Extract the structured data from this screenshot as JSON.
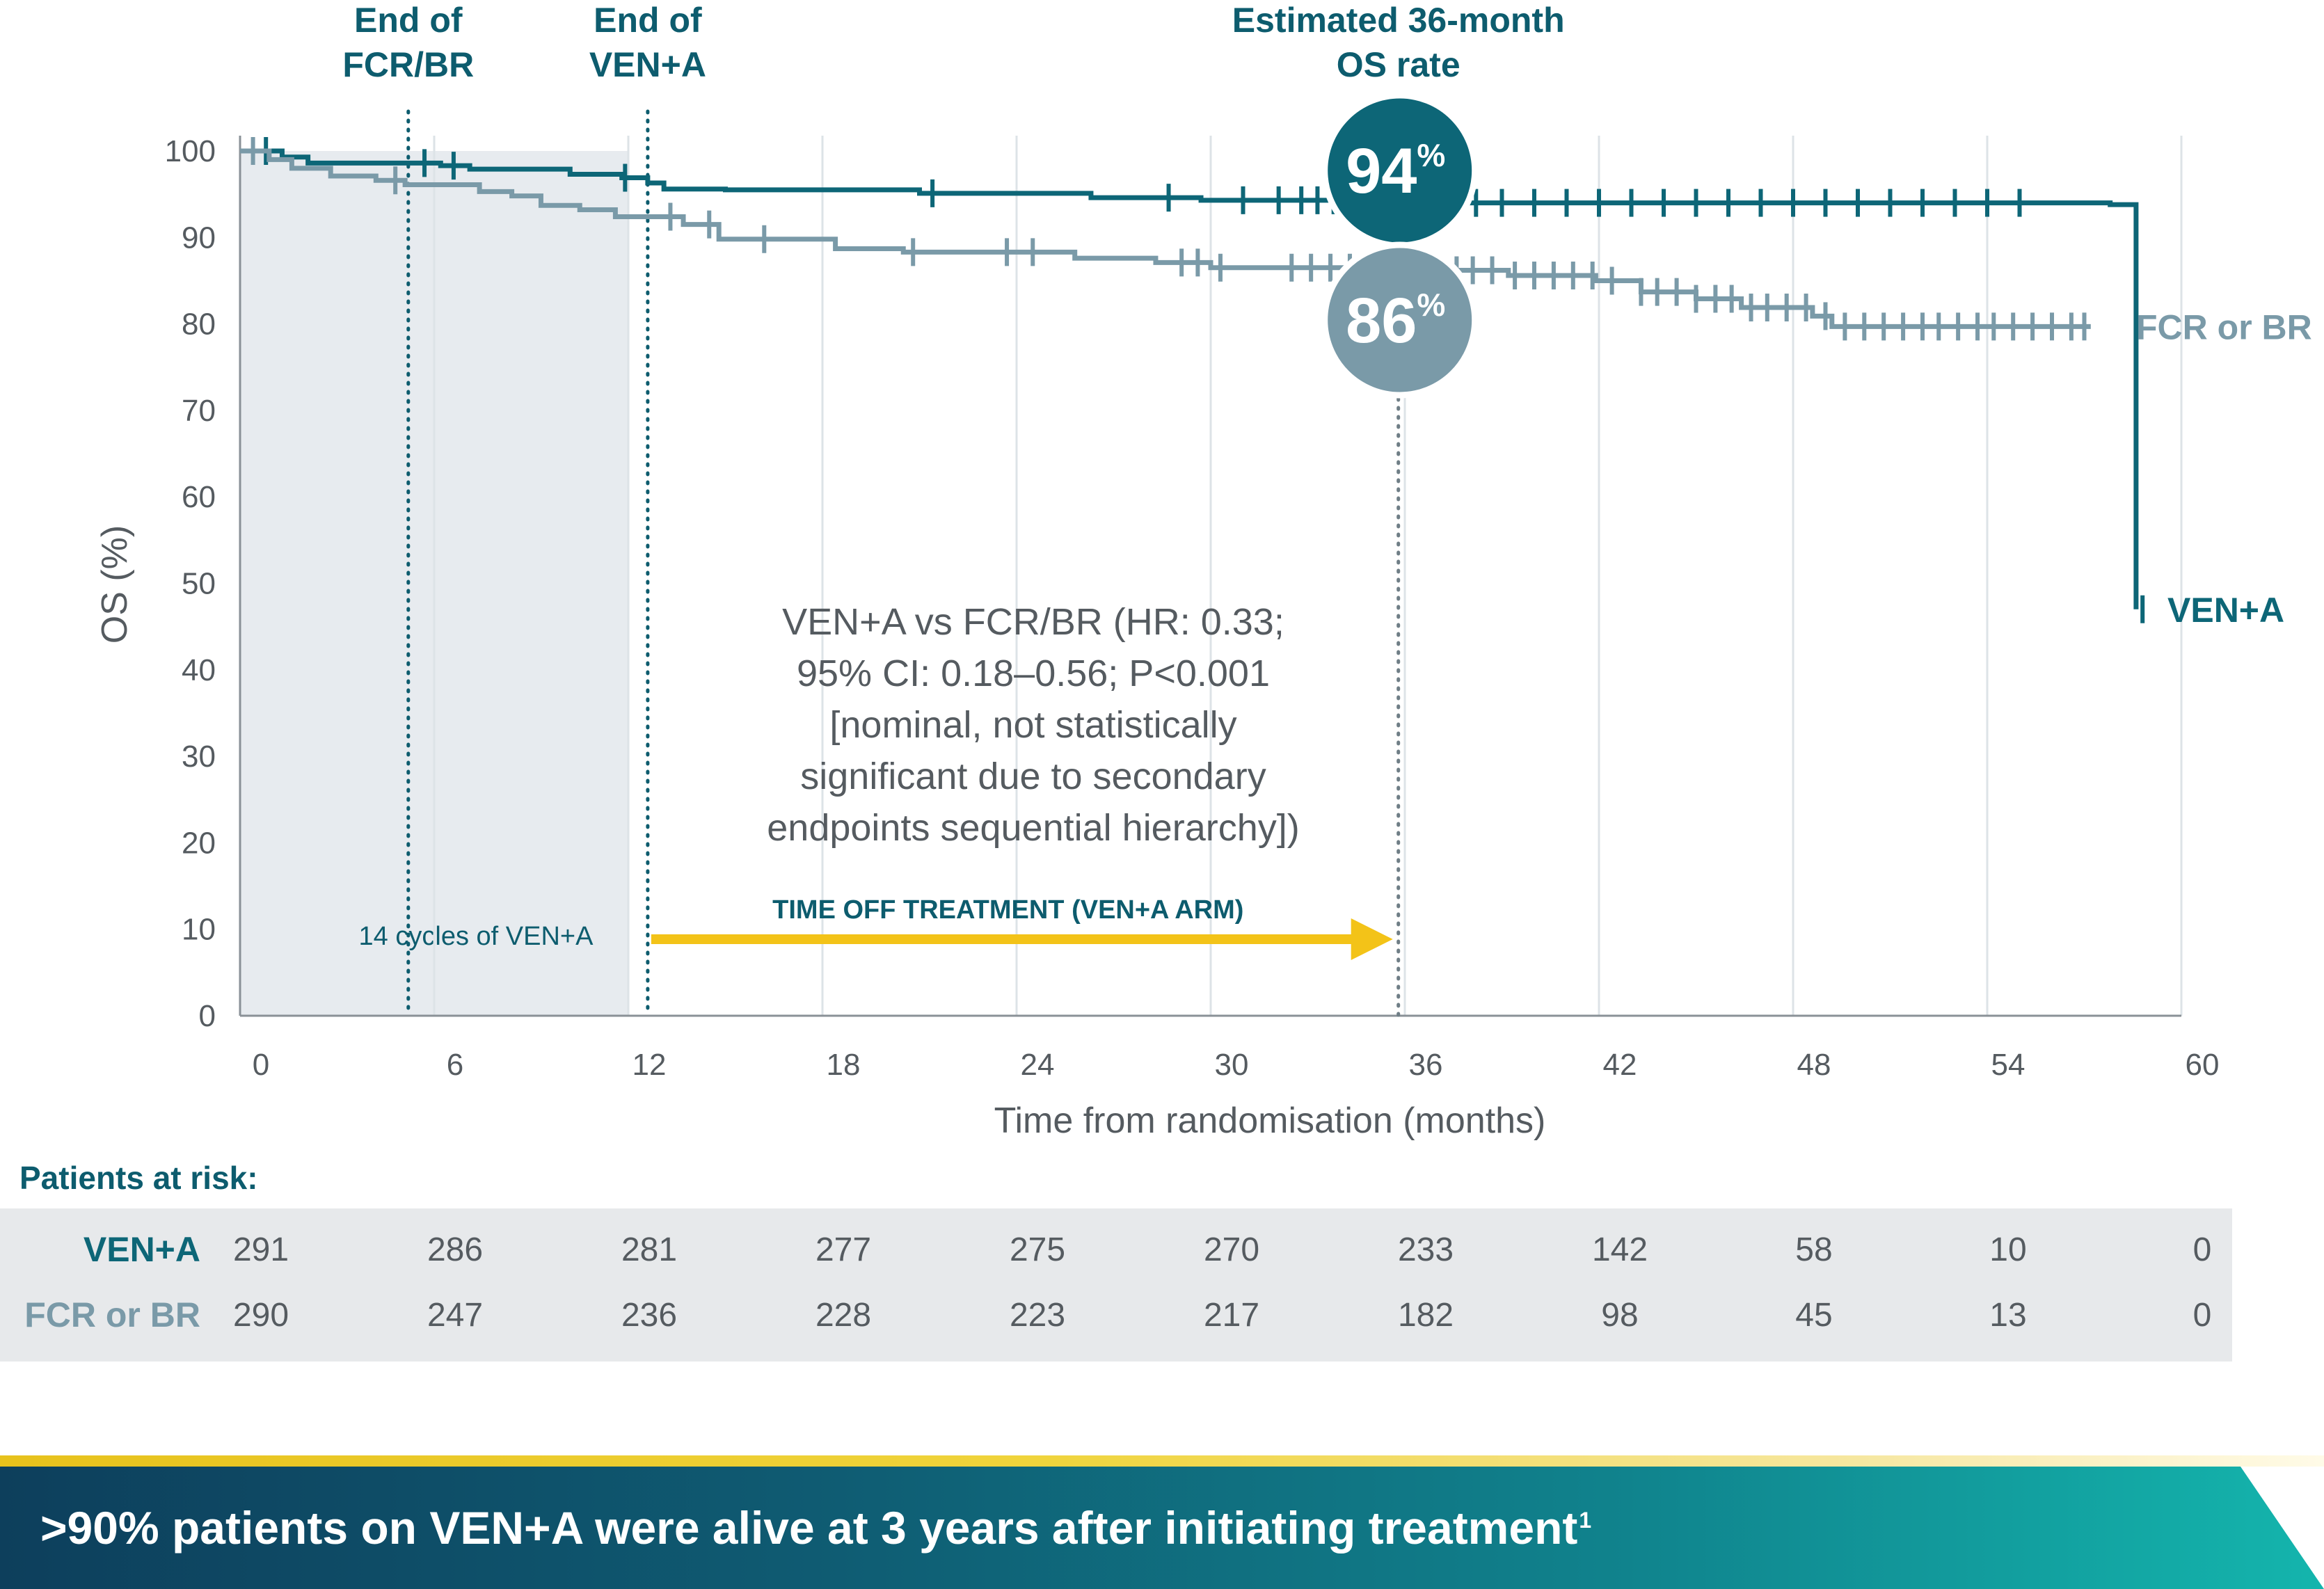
{
  "chart_data": {
    "type": "line",
    "ylabel": "OS (%)",
    "xlabel": "Time from randomisation (months)",
    "xlim": [
      0,
      60
    ],
    "ylim": [
      0,
      100
    ],
    "x_ticks": [
      0,
      6,
      12,
      18,
      24,
      30,
      36,
      42,
      48,
      54,
      60
    ],
    "y_ticks": [
      0,
      10,
      20,
      30,
      40,
      50,
      60,
      70,
      80,
      90,
      100
    ],
    "grid": "vertical",
    "series": [
      {
        "name": "VEN+A",
        "color": "#0d6677",
        "values": [
          [
            0,
            100
          ],
          [
            1.3,
            99.3
          ],
          [
            2.1,
            98.6
          ],
          [
            6.2,
            98.3
          ],
          [
            7.1,
            97.9
          ],
          [
            10.2,
            97.3
          ],
          [
            11.8,
            96.9
          ],
          [
            12.6,
            96.3
          ],
          [
            13.1,
            95.6
          ],
          [
            15,
            95.5
          ],
          [
            21,
            95.1
          ],
          [
            26.3,
            94.6
          ],
          [
            29.7,
            94.3
          ],
          [
            35,
            94
          ],
          [
            57.8,
            93.8
          ],
          [
            58.6,
            47
          ]
        ],
        "censor_marks_x": [
          0.8,
          5.7,
          6.6,
          11.9,
          21.4,
          28.7,
          31,
          32.1,
          32.8,
          33.3,
          33.8,
          34.3,
          34.8,
          35.4,
          36.1,
          36.7,
          37.4,
          38.2,
          39,
          40,
          41,
          42,
          43,
          44,
          45,
          46,
          47,
          48,
          49,
          50,
          51,
          52,
          53,
          54,
          55,
          58.8
        ],
        "end_label": "VEN+A",
        "estimated_36_month_os": "94"
      },
      {
        "name": "FCR or BR",
        "color": "#7a9aa8",
        "values": [
          [
            0,
            100
          ],
          [
            0.9,
            99
          ],
          [
            1.6,
            98
          ],
          [
            2.8,
            97.1
          ],
          [
            4.2,
            96.6
          ],
          [
            5.1,
            96.1
          ],
          [
            7.4,
            95.3
          ],
          [
            8.4,
            94.8
          ],
          [
            9.3,
            93.7
          ],
          [
            10.5,
            93.2
          ],
          [
            11.6,
            92.4
          ],
          [
            13.7,
            91.5
          ],
          [
            14.8,
            89.8
          ],
          [
            18.4,
            88.7
          ],
          [
            20.5,
            88.3
          ],
          [
            25.8,
            87.6
          ],
          [
            28.3,
            87.1
          ],
          [
            30,
            86.5
          ],
          [
            36,
            86.2
          ],
          [
            39.2,
            85.6
          ],
          [
            41.9,
            85
          ],
          [
            43.3,
            83.7
          ],
          [
            45,
            82.9
          ],
          [
            46.4,
            81.9
          ],
          [
            48.6,
            80.9
          ],
          [
            49.2,
            79.7
          ],
          [
            57.2,
            79.7
          ]
        ],
        "censor_marks_x": [
          0.4,
          4.8,
          13.3,
          14.5,
          16.2,
          20.8,
          23.7,
          24.5,
          29.1,
          29.6,
          30.3,
          32.5,
          33.1,
          33.7,
          34.3,
          34.9,
          35.5,
          36.4,
          37,
          37.6,
          38.1,
          38.7,
          39.4,
          40,
          40.6,
          41.2,
          41.8,
          42.4,
          43.3,
          43.8,
          44.4,
          45,
          45.6,
          46.1,
          46.7,
          47.2,
          47.8,
          48.4,
          49,
          49.6,
          50.2,
          50.8,
          51.4,
          52,
          52.5,
          53.1,
          53.7,
          54.2,
          54.8,
          55.4,
          56,
          56.6,
          57
        ],
        "end_label": "FCR or BR",
        "estimated_36_month_os": "86"
      }
    ],
    "reference_lines": [
      {
        "x": 5.2,
        "label": "End of\nFCR/BR"
      },
      {
        "x": 12.6,
        "label": "End of\nVEN+A"
      },
      {
        "x": 35.8,
        "label": "Estimated 36-month\nOS rate"
      }
    ],
    "shaded_region": {
      "x": [
        0,
        12
      ],
      "label": "14 cycles of VEN+A"
    },
    "arrow": {
      "x": [
        12.6,
        35.8
      ],
      "y": 9,
      "label": "TIME OFF TREATMENT (VEN+A ARM)",
      "color": "#f3c318"
    },
    "annotation": [
      "VEN+A vs FCR/BR (HR: 0.33;",
      "95% CI: 0.18–0.56; P<0.001",
      "[nominal, not statistically",
      "significant due to secondary",
      "endpoints sequential hierarchy])"
    ],
    "percent_sign": "%"
  },
  "risk_table": {
    "header": "Patients at risk:",
    "rows": [
      {
        "label": "VEN+A",
        "color": "#0d6677",
        "values": [
          "291",
          "286",
          "281",
          "277",
          "275",
          "270",
          "233",
          "142",
          "58",
          "10",
          "0"
        ]
      },
      {
        "label": "FCR or BR",
        "color": "#7a9aa8",
        "values": [
          "290",
          "247",
          "236",
          "228",
          "223",
          "217",
          "182",
          "98",
          "45",
          "13",
          "0"
        ]
      }
    ],
    "months": [
      0,
      6,
      12,
      18,
      24,
      30,
      36,
      42,
      48,
      54,
      60
    ]
  },
  "banner": {
    "text": ">90% patients on VEN+A were alive at 3 years after initiating treatment",
    "footnote": "1"
  }
}
